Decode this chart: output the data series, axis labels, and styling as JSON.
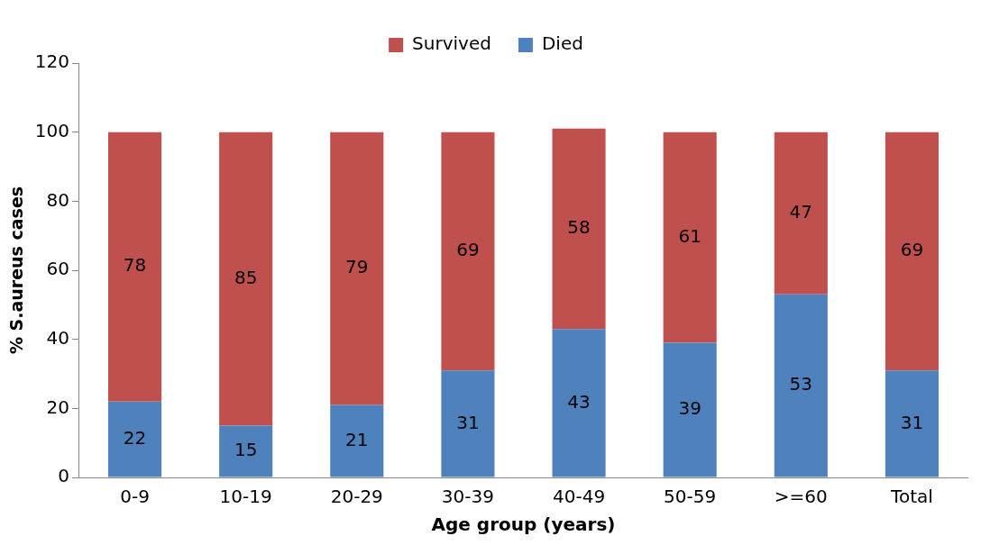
{
  "chart_data": {
    "type": "bar",
    "stacked": true,
    "xlabel": "Age group (years)",
    "ylabel": "% S.aureus cases",
    "categories": [
      "0-9",
      "10-19",
      "20-29",
      "30-39",
      "40-49",
      "50-59",
      ">=60",
      "Total"
    ],
    "series": [
      {
        "name": "Died",
        "color": "#4f81bd",
        "values": [
          22,
          15,
          21,
          31,
          43,
          39,
          53,
          31
        ]
      },
      {
        "name": "Survived",
        "color": "#c0504d",
        "values": [
          78,
          85,
          79,
          69,
          58,
          61,
          47,
          69
        ]
      }
    ],
    "ylim": [
      0,
      120
    ],
    "yticks": [
      0,
      20,
      40,
      60,
      80,
      100,
      120
    ],
    "grid": false,
    "legend": "top",
    "data_labels": true
  }
}
